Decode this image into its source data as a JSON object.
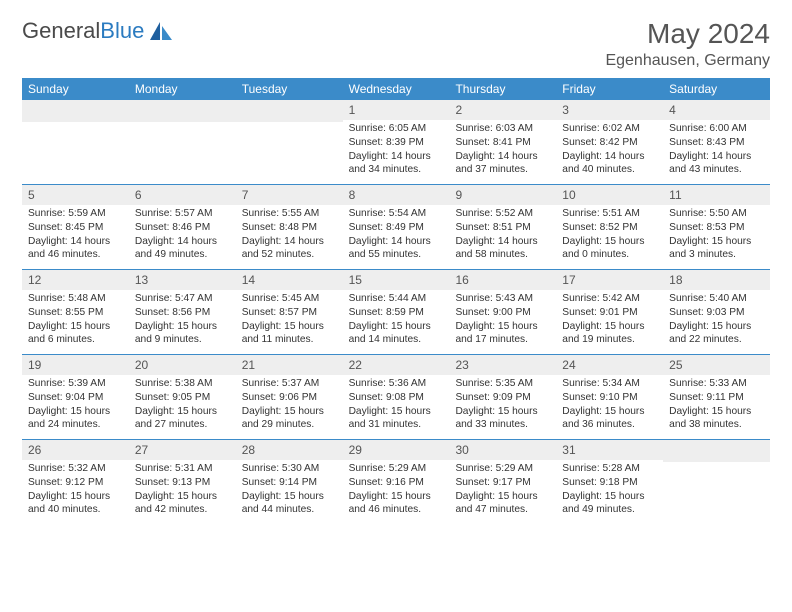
{
  "brand": {
    "name_gray": "General",
    "name_blue": "Blue"
  },
  "title": {
    "month": "May 2024",
    "location": "Egenhausen, Germany"
  },
  "colors": {
    "header_bg": "#3b8bc9",
    "header_text": "#ffffff",
    "daynum_bg": "#eeeeee",
    "row_border": "#3b8bc9",
    "body_text": "#333333",
    "title_text": "#555555"
  },
  "day_names": [
    "Sunday",
    "Monday",
    "Tuesday",
    "Wednesday",
    "Thursday",
    "Friday",
    "Saturday"
  ],
  "weeks": [
    [
      {
        "n": "",
        "sunrise": "",
        "sunset": "",
        "daylight": ""
      },
      {
        "n": "",
        "sunrise": "",
        "sunset": "",
        "daylight": ""
      },
      {
        "n": "",
        "sunrise": "",
        "sunset": "",
        "daylight": ""
      },
      {
        "n": "1",
        "sunrise": "Sunrise: 6:05 AM",
        "sunset": "Sunset: 8:39 PM",
        "daylight": "Daylight: 14 hours and 34 minutes."
      },
      {
        "n": "2",
        "sunrise": "Sunrise: 6:03 AM",
        "sunset": "Sunset: 8:41 PM",
        "daylight": "Daylight: 14 hours and 37 minutes."
      },
      {
        "n": "3",
        "sunrise": "Sunrise: 6:02 AM",
        "sunset": "Sunset: 8:42 PM",
        "daylight": "Daylight: 14 hours and 40 minutes."
      },
      {
        "n": "4",
        "sunrise": "Sunrise: 6:00 AM",
        "sunset": "Sunset: 8:43 PM",
        "daylight": "Daylight: 14 hours and 43 minutes."
      }
    ],
    [
      {
        "n": "5",
        "sunrise": "Sunrise: 5:59 AM",
        "sunset": "Sunset: 8:45 PM",
        "daylight": "Daylight: 14 hours and 46 minutes."
      },
      {
        "n": "6",
        "sunrise": "Sunrise: 5:57 AM",
        "sunset": "Sunset: 8:46 PM",
        "daylight": "Daylight: 14 hours and 49 minutes."
      },
      {
        "n": "7",
        "sunrise": "Sunrise: 5:55 AM",
        "sunset": "Sunset: 8:48 PM",
        "daylight": "Daylight: 14 hours and 52 minutes."
      },
      {
        "n": "8",
        "sunrise": "Sunrise: 5:54 AM",
        "sunset": "Sunset: 8:49 PM",
        "daylight": "Daylight: 14 hours and 55 minutes."
      },
      {
        "n": "9",
        "sunrise": "Sunrise: 5:52 AM",
        "sunset": "Sunset: 8:51 PM",
        "daylight": "Daylight: 14 hours and 58 minutes."
      },
      {
        "n": "10",
        "sunrise": "Sunrise: 5:51 AM",
        "sunset": "Sunset: 8:52 PM",
        "daylight": "Daylight: 15 hours and 0 minutes."
      },
      {
        "n": "11",
        "sunrise": "Sunrise: 5:50 AM",
        "sunset": "Sunset: 8:53 PM",
        "daylight": "Daylight: 15 hours and 3 minutes."
      }
    ],
    [
      {
        "n": "12",
        "sunrise": "Sunrise: 5:48 AM",
        "sunset": "Sunset: 8:55 PM",
        "daylight": "Daylight: 15 hours and 6 minutes."
      },
      {
        "n": "13",
        "sunrise": "Sunrise: 5:47 AM",
        "sunset": "Sunset: 8:56 PM",
        "daylight": "Daylight: 15 hours and 9 minutes."
      },
      {
        "n": "14",
        "sunrise": "Sunrise: 5:45 AM",
        "sunset": "Sunset: 8:57 PM",
        "daylight": "Daylight: 15 hours and 11 minutes."
      },
      {
        "n": "15",
        "sunrise": "Sunrise: 5:44 AM",
        "sunset": "Sunset: 8:59 PM",
        "daylight": "Daylight: 15 hours and 14 minutes."
      },
      {
        "n": "16",
        "sunrise": "Sunrise: 5:43 AM",
        "sunset": "Sunset: 9:00 PM",
        "daylight": "Daylight: 15 hours and 17 minutes."
      },
      {
        "n": "17",
        "sunrise": "Sunrise: 5:42 AM",
        "sunset": "Sunset: 9:01 PM",
        "daylight": "Daylight: 15 hours and 19 minutes."
      },
      {
        "n": "18",
        "sunrise": "Sunrise: 5:40 AM",
        "sunset": "Sunset: 9:03 PM",
        "daylight": "Daylight: 15 hours and 22 minutes."
      }
    ],
    [
      {
        "n": "19",
        "sunrise": "Sunrise: 5:39 AM",
        "sunset": "Sunset: 9:04 PM",
        "daylight": "Daylight: 15 hours and 24 minutes."
      },
      {
        "n": "20",
        "sunrise": "Sunrise: 5:38 AM",
        "sunset": "Sunset: 9:05 PM",
        "daylight": "Daylight: 15 hours and 27 minutes."
      },
      {
        "n": "21",
        "sunrise": "Sunrise: 5:37 AM",
        "sunset": "Sunset: 9:06 PM",
        "daylight": "Daylight: 15 hours and 29 minutes."
      },
      {
        "n": "22",
        "sunrise": "Sunrise: 5:36 AM",
        "sunset": "Sunset: 9:08 PM",
        "daylight": "Daylight: 15 hours and 31 minutes."
      },
      {
        "n": "23",
        "sunrise": "Sunrise: 5:35 AM",
        "sunset": "Sunset: 9:09 PM",
        "daylight": "Daylight: 15 hours and 33 minutes."
      },
      {
        "n": "24",
        "sunrise": "Sunrise: 5:34 AM",
        "sunset": "Sunset: 9:10 PM",
        "daylight": "Daylight: 15 hours and 36 minutes."
      },
      {
        "n": "25",
        "sunrise": "Sunrise: 5:33 AM",
        "sunset": "Sunset: 9:11 PM",
        "daylight": "Daylight: 15 hours and 38 minutes."
      }
    ],
    [
      {
        "n": "26",
        "sunrise": "Sunrise: 5:32 AM",
        "sunset": "Sunset: 9:12 PM",
        "daylight": "Daylight: 15 hours and 40 minutes."
      },
      {
        "n": "27",
        "sunrise": "Sunrise: 5:31 AM",
        "sunset": "Sunset: 9:13 PM",
        "daylight": "Daylight: 15 hours and 42 minutes."
      },
      {
        "n": "28",
        "sunrise": "Sunrise: 5:30 AM",
        "sunset": "Sunset: 9:14 PM",
        "daylight": "Daylight: 15 hours and 44 minutes."
      },
      {
        "n": "29",
        "sunrise": "Sunrise: 5:29 AM",
        "sunset": "Sunset: 9:16 PM",
        "daylight": "Daylight: 15 hours and 46 minutes."
      },
      {
        "n": "30",
        "sunrise": "Sunrise: 5:29 AM",
        "sunset": "Sunset: 9:17 PM",
        "daylight": "Daylight: 15 hours and 47 minutes."
      },
      {
        "n": "31",
        "sunrise": "Sunrise: 5:28 AM",
        "sunset": "Sunset: 9:18 PM",
        "daylight": "Daylight: 15 hours and 49 minutes."
      },
      {
        "n": "",
        "sunrise": "",
        "sunset": "",
        "daylight": ""
      }
    ]
  ]
}
